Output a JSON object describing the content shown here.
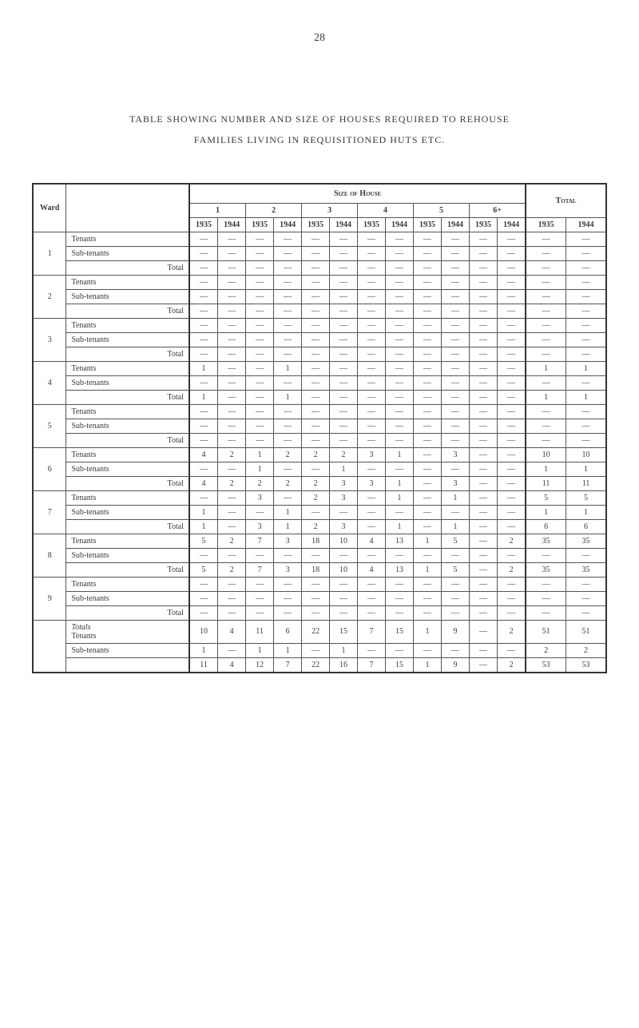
{
  "page_number": "28",
  "title_line1": "TABLE SHOWING NUMBER AND SIZE OF HOUSES REQUIRED TO REHOUSE",
  "title_line2": "FAMILIES LIVING IN REQUISITIONED HUTS ETC.",
  "headers": {
    "ward": "Ward",
    "size_of_house": "Size of House",
    "total": "Total",
    "sizes": [
      "1",
      "2",
      "3",
      "4",
      "5",
      "6+"
    ],
    "years": [
      "1935",
      "1944",
      "1935",
      "1944",
      "1935",
      "1944",
      "1935",
      "1944",
      "1935",
      "1944",
      "1935",
      "1944"
    ],
    "total_years": [
      "1935",
      "1944"
    ]
  },
  "categories": {
    "tenants": "Tenants",
    "subtenants": "Sub-tenants",
    "total": "Total",
    "totals": "Totals"
  },
  "wards": [
    {
      "ward": "1",
      "tenants": [
        "—",
        "—",
        "—",
        "—",
        "—",
        "—",
        "—",
        "—",
        "—",
        "—",
        "—",
        "—",
        "—",
        "—"
      ],
      "subtenants": [
        "—",
        "—",
        "—",
        "—",
        "—",
        "—",
        "—",
        "—",
        "—",
        "—",
        "—",
        "—",
        "—",
        "—"
      ],
      "total": [
        "—",
        "—",
        "—",
        "—",
        "—",
        "—",
        "—",
        "—",
        "—",
        "—",
        "—",
        "—",
        "—",
        "—"
      ]
    },
    {
      "ward": "2",
      "tenants": [
        "—",
        "—",
        "—",
        "—",
        "—",
        "—",
        "—",
        "—",
        "—",
        "—",
        "—",
        "—",
        "—",
        "—"
      ],
      "subtenants": [
        "—",
        "—",
        "—",
        "—",
        "—",
        "—",
        "—",
        "—",
        "—",
        "—",
        "—",
        "—",
        "—",
        "—"
      ],
      "total": [
        "—",
        "—",
        "—",
        "—",
        "—",
        "—",
        "—",
        "—",
        "—",
        "—",
        "—",
        "—",
        "—",
        "—"
      ]
    },
    {
      "ward": "3",
      "tenants": [
        "—",
        "—",
        "—",
        "—",
        "—",
        "—",
        "—",
        "—",
        "—",
        "—",
        "—",
        "—",
        "—",
        "—"
      ],
      "subtenants": [
        "—",
        "—",
        "—",
        "—",
        "—",
        "—",
        "—",
        "—",
        "—",
        "—",
        "—",
        "—",
        "—",
        "—"
      ],
      "total": [
        "—",
        "—",
        "—",
        "—",
        "—",
        "—",
        "—",
        "—",
        "—",
        "—",
        "—",
        "—",
        "—",
        "—"
      ]
    },
    {
      "ward": "4",
      "tenants": [
        "1",
        "—",
        "—",
        "1",
        "—",
        "—",
        "—",
        "—",
        "—",
        "—",
        "—",
        "—",
        "1",
        "1"
      ],
      "subtenants": [
        "—",
        "—",
        "—",
        "—",
        "—",
        "—",
        "—",
        "—",
        "—",
        "—",
        "—",
        "—",
        "—",
        "—"
      ],
      "total": [
        "1",
        "—",
        "—",
        "1",
        "—",
        "—",
        "—",
        "—",
        "—",
        "—",
        "—",
        "—",
        "1",
        "1"
      ]
    },
    {
      "ward": "5",
      "tenants": [
        "—",
        "—",
        "—",
        "—",
        "—",
        "—",
        "—",
        "—",
        "—",
        "—",
        "—",
        "—",
        "—",
        "—"
      ],
      "subtenants": [
        "—",
        "—",
        "—",
        "—",
        "—",
        "—",
        "—",
        "—",
        "—",
        "—",
        "—",
        "—",
        "—",
        "—"
      ],
      "total": [
        "—",
        "—",
        "—",
        "—",
        "—",
        "—",
        "—",
        "—",
        "—",
        "—",
        "—",
        "—",
        "—",
        "—"
      ]
    },
    {
      "ward": "6",
      "tenants": [
        "4",
        "2",
        "1",
        "2",
        "2",
        "2",
        "3",
        "1",
        "—",
        "3",
        "—",
        "—",
        "10",
        "10"
      ],
      "subtenants": [
        "—",
        "—",
        "1",
        "—",
        "—",
        "1",
        "—",
        "—",
        "—",
        "—",
        "—",
        "—",
        "1",
        "1"
      ],
      "total": [
        "4",
        "2",
        "2",
        "2",
        "2",
        "3",
        "3",
        "1",
        "—",
        "3",
        "—",
        "—",
        "11",
        "11"
      ]
    },
    {
      "ward": "7",
      "tenants": [
        "—",
        "—",
        "3",
        "—",
        "2",
        "3",
        "—",
        "1",
        "—",
        "1",
        "—",
        "—",
        "5",
        "5"
      ],
      "subtenants": [
        "1",
        "—",
        "—",
        "1",
        "—",
        "—",
        "—",
        "—",
        "—",
        "—",
        "—",
        "—",
        "1",
        "1"
      ],
      "total": [
        "1",
        "—",
        "3",
        "1",
        "2",
        "3",
        "—",
        "1",
        "—",
        "1",
        "—",
        "—",
        "6",
        "6"
      ]
    },
    {
      "ward": "8",
      "tenants": [
        "5",
        "2",
        "7",
        "3",
        "18",
        "10",
        "4",
        "13",
        "1",
        "5",
        "—",
        "2",
        "35",
        "35"
      ],
      "subtenants": [
        "—",
        "—",
        "—",
        "—",
        "—",
        "—",
        "—",
        "—",
        "—",
        "—",
        "—",
        "—",
        "—",
        "—"
      ],
      "total": [
        "5",
        "2",
        "7",
        "3",
        "18",
        "10",
        "4",
        "13",
        "1",
        "5",
        "—",
        "2",
        "35",
        "35"
      ]
    },
    {
      "ward": "9",
      "tenants": [
        "—",
        "—",
        "—",
        "—",
        "—",
        "—",
        "—",
        "—",
        "—",
        "—",
        "—",
        "—",
        "—",
        "—"
      ],
      "subtenants": [
        "—",
        "—",
        "—",
        "—",
        "—",
        "—",
        "—",
        "—",
        "—",
        "—",
        "—",
        "—",
        "—",
        "—"
      ],
      "total": [
        "—",
        "—",
        "—",
        "—",
        "—",
        "—",
        "—",
        "—",
        "—",
        "—",
        "—",
        "—",
        "—",
        "—"
      ]
    }
  ],
  "grand_totals": {
    "tenants": [
      "10",
      "4",
      "11",
      "6",
      "22",
      "15",
      "7",
      "15",
      "1",
      "9",
      "—",
      "2",
      "51",
      "51"
    ],
    "subtenants": [
      "1",
      "—",
      "1",
      "1",
      "—",
      "1",
      "—",
      "—",
      "—",
      "—",
      "—",
      "—",
      "2",
      "2"
    ],
    "total": [
      "11",
      "4",
      "12",
      "7",
      "22",
      "16",
      "7",
      "15",
      "1",
      "9",
      "—",
      "2",
      "53",
      "53"
    ]
  }
}
